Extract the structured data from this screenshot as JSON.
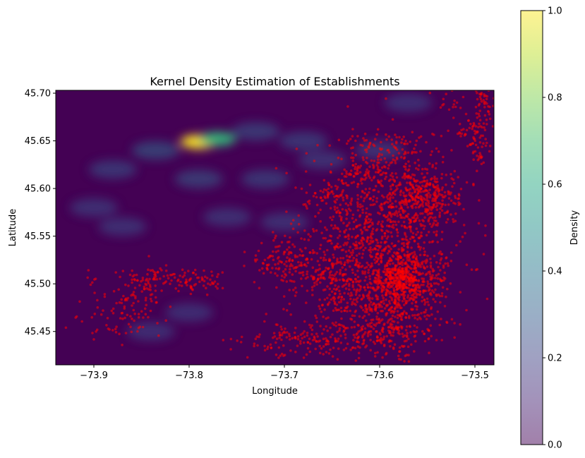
{
  "chart_data": {
    "type": "heatmap",
    "title": "Kernel Density Estimation of Establishments",
    "xlabel": "Longitude",
    "ylabel": "Latitude",
    "xlim": [
      -73.94,
      -73.48
    ],
    "ylim": [
      45.415,
      45.703
    ],
    "x_ticks": [
      {
        "value": -73.9,
        "label": "−73.9"
      },
      {
        "value": -73.8,
        "label": "−73.8"
      },
      {
        "value": -73.7,
        "label": "−73.7"
      },
      {
        "value": -73.6,
        "label": "−73.6"
      },
      {
        "value": -73.5,
        "label": "−73.5"
      }
    ],
    "y_ticks": [
      {
        "value": 45.45,
        "label": "45.45"
      },
      {
        "value": 45.5,
        "label": "45.50"
      },
      {
        "value": 45.55,
        "label": "45.55"
      },
      {
        "value": 45.6,
        "label": "45.60"
      },
      {
        "value": 45.65,
        "label": "45.65"
      },
      {
        "value": 45.7,
        "label": "45.70"
      }
    ],
    "colorbar": {
      "label": "Density",
      "colormap": "viridis",
      "alpha": 0.5,
      "range": [
        0,
        1
      ],
      "ticks": [
        {
          "value": 0.0,
          "label": "0.0"
        },
        {
          "value": 0.2,
          "label": "0.2"
        },
        {
          "value": 0.4,
          "label": "0.4"
        },
        {
          "value": 0.6,
          "label": "0.6"
        },
        {
          "value": 0.8,
          "label": "0.8"
        },
        {
          "value": 1.0,
          "label": "1.0"
        }
      ]
    },
    "density_peaks": [
      {
        "lon": -73.79,
        "lat": 45.649,
        "value": 1.0
      },
      {
        "lon": -73.77,
        "lat": 45.652,
        "value": 0.55
      },
      {
        "lon": -73.835,
        "lat": 45.64,
        "value": 0.22
      },
      {
        "lon": -73.73,
        "lat": 45.66,
        "value": 0.15
      },
      {
        "lon": -73.68,
        "lat": 45.65,
        "value": 0.12
      },
      {
        "lon": -73.6,
        "lat": 45.64,
        "value": 0.1
      },
      {
        "lon": -73.88,
        "lat": 45.62,
        "value": 0.12
      },
      {
        "lon": -73.79,
        "lat": 45.61,
        "value": 0.16
      },
      {
        "lon": -73.72,
        "lat": 45.61,
        "value": 0.12
      },
      {
        "lon": -73.66,
        "lat": 45.63,
        "value": 0.1
      },
      {
        "lon": -73.9,
        "lat": 45.58,
        "value": 0.08
      },
      {
        "lon": -73.87,
        "lat": 45.56,
        "value": 0.08
      },
      {
        "lon": -73.76,
        "lat": 45.57,
        "value": 0.07
      },
      {
        "lon": -73.84,
        "lat": 45.45,
        "value": 0.06
      },
      {
        "lon": -73.8,
        "lat": 45.47,
        "value": 0.05
      },
      {
        "lon": -73.7,
        "lat": 45.565,
        "value": 0.07
      },
      {
        "lon": -73.57,
        "lat": 45.69,
        "value": 0.06
      }
    ],
    "scatter": {
      "name": "",
      "color": "#ff0000",
      "clusters": [
        {
          "lon": -73.575,
          "lat": 45.505,
          "sx": 0.012,
          "sy": 0.012,
          "n": 320
        },
        {
          "lon": -73.59,
          "lat": 45.52,
          "sx": 0.035,
          "sy": 0.04,
          "n": 620
        },
        {
          "lon": -73.62,
          "lat": 45.545,
          "sx": 0.04,
          "sy": 0.045,
          "n": 420
        },
        {
          "lon": -73.57,
          "lat": 45.575,
          "sx": 0.03,
          "sy": 0.03,
          "n": 280
        },
        {
          "lon": -73.56,
          "lat": 45.6,
          "sx": 0.022,
          "sy": 0.015,
          "n": 150
        },
        {
          "lon": -73.54,
          "lat": 45.585,
          "sx": 0.012,
          "sy": 0.012,
          "n": 70
        },
        {
          "lon": -73.62,
          "lat": 45.47,
          "sx": 0.03,
          "sy": 0.025,
          "n": 240
        },
        {
          "lon": -73.58,
          "lat": 45.455,
          "sx": 0.025,
          "sy": 0.018,
          "n": 150
        },
        {
          "lon": -73.675,
          "lat": 45.44,
          "sx": 0.035,
          "sy": 0.008,
          "n": 130
        },
        {
          "lon": -73.7,
          "lat": 45.525,
          "sx": 0.02,
          "sy": 0.012,
          "n": 120
        },
        {
          "lon": -73.66,
          "lat": 45.51,
          "sx": 0.015,
          "sy": 0.01,
          "n": 60
        },
        {
          "lon": -73.65,
          "lat": 45.595,
          "sx": 0.012,
          "sy": 0.01,
          "n": 50
        },
        {
          "lon": -73.62,
          "lat": 45.62,
          "sx": 0.015,
          "sy": 0.012,
          "n": 70
        },
        {
          "lon": -73.59,
          "lat": 45.645,
          "sx": 0.025,
          "sy": 0.01,
          "n": 80
        },
        {
          "lon": -73.5,
          "lat": 45.665,
          "sx": 0.012,
          "sy": 0.012,
          "n": 60
        },
        {
          "lon": -73.495,
          "lat": 45.645,
          "sx": 0.006,
          "sy": 0.012,
          "n": 30
        },
        {
          "lon": -73.49,
          "lat": 45.692,
          "sx": 0.008,
          "sy": 0.008,
          "n": 40
        },
        {
          "lon": -73.53,
          "lat": 45.69,
          "sx": 0.008,
          "sy": 0.008,
          "n": 15
        },
        {
          "lon": -73.54,
          "lat": 45.5,
          "sx": 0.006,
          "sy": 0.01,
          "n": 30
        },
        {
          "lon": -73.865,
          "lat": 45.475,
          "sx": 0.018,
          "sy": 0.018,
          "n": 110
        },
        {
          "lon": -73.83,
          "lat": 45.505,
          "sx": 0.02,
          "sy": 0.006,
          "n": 80
        },
        {
          "lon": -73.785,
          "lat": 45.503,
          "sx": 0.012,
          "sy": 0.006,
          "n": 40
        },
        {
          "lon": -73.905,
          "lat": 45.505,
          "sx": 0.004,
          "sy": 0.004,
          "n": 6
        },
        {
          "lon": -73.92,
          "lat": 45.462,
          "sx": 0.005,
          "sy": 0.004,
          "n": 4
        }
      ]
    }
  }
}
